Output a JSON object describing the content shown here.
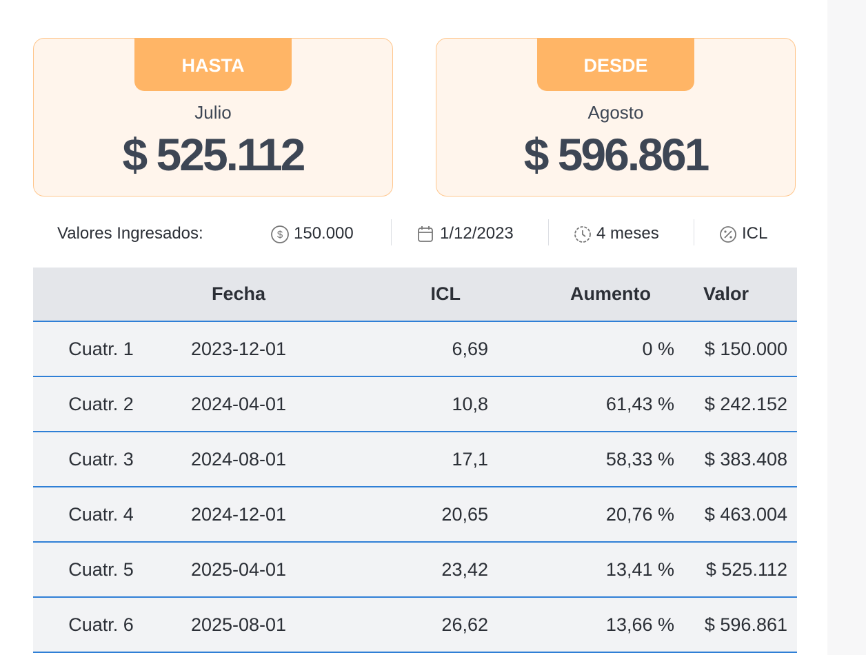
{
  "cards": [
    {
      "tag": "HASTA",
      "month": "Julio",
      "amount": "$ 525.112"
    },
    {
      "tag": "DESDE",
      "month": "Agosto",
      "amount": "$ 596.861"
    }
  ],
  "inputs": {
    "label": "Valores Ingresados:",
    "amount": "150.000",
    "date": "1/12/2023",
    "period": "4 meses",
    "index": "ICL"
  },
  "table": {
    "headers": [
      "Fecha",
      "ICL",
      "Aumento",
      "Valor"
    ],
    "rows": [
      [
        "Cuatr. 1",
        "2023-12-01",
        "6,69",
        "0 %",
        "$ 150.000"
      ],
      [
        "Cuatr. 2",
        "2024-04-01",
        "10,8",
        "61,43 %",
        "$ 242.152"
      ],
      [
        "Cuatr. 3",
        "2024-08-01",
        "17,1",
        "58,33 %",
        "$ 383.408"
      ],
      [
        "Cuatr. 4",
        "2024-12-01",
        "20,65",
        "20,76 %",
        "$ 463.004"
      ],
      [
        "Cuatr. 5",
        "2025-04-01",
        "23,42",
        "13,41 %",
        "$ 525.112"
      ],
      [
        "Cuatr. 6",
        "2025-08-01",
        "26,62",
        "13,66 %",
        "$ 596.861"
      ]
    ]
  }
}
